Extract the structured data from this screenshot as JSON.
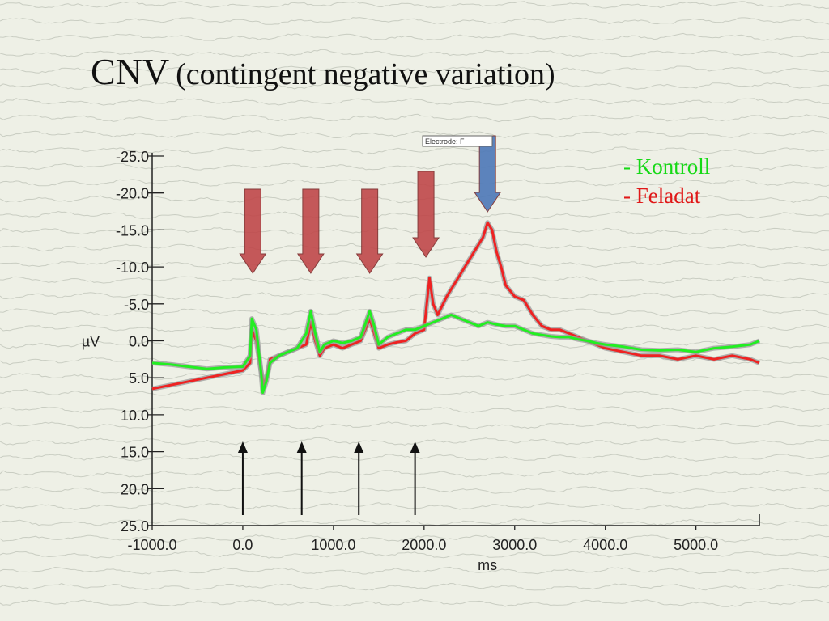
{
  "slide": {
    "title_main": "CNV",
    "title_sub": "(contingent negative variation)"
  },
  "legend": [
    {
      "label": "- Kontroll",
      "color": "#16d916"
    },
    {
      "label": "- Feladat",
      "color": "#e01818"
    }
  ],
  "electrode_label": "Electrode: F",
  "colors": {
    "kontroll": "#22ee22",
    "feladat": "#ee2222",
    "red_arrow": "#c0484a",
    "blue_arrow": "#4d78b8",
    "stimulus_arrow": "#111111"
  },
  "chart_data": {
    "type": "line",
    "xlabel": "ms",
    "ylabel": "µV",
    "xlim": [
      -1000,
      5700
    ],
    "ylim": [
      -25,
      25
    ],
    "y_inverted": true,
    "x_ticks": [
      "-1000.0",
      "0.0",
      "1000.0",
      "2000.0",
      "3000.0",
      "4000.0",
      "5000.0"
    ],
    "x_tick_values": [
      -1000,
      0,
      1000,
      2000,
      3000,
      4000,
      5000
    ],
    "y_ticks": [
      "-25.0",
      "-20.0",
      "-15.0",
      "-10.0",
      "-5.0",
      "0.0",
      "5.0",
      "10.0",
      "15.0",
      "20.0",
      "25.0"
    ],
    "y_tick_values": [
      -25,
      -20,
      -15,
      -10,
      -5,
      0,
      5,
      10,
      15,
      20,
      25
    ],
    "series": [
      {
        "name": "Kontroll",
        "color": "#22ee22",
        "points": [
          [
            -1000,
            3.0
          ],
          [
            -800,
            3.2
          ],
          [
            -600,
            3.5
          ],
          [
            -400,
            3.8
          ],
          [
            -200,
            3.6
          ],
          [
            0,
            3.5
          ],
          [
            80,
            2.0
          ],
          [
            100,
            -3.0
          ],
          [
            150,
            -1.5
          ],
          [
            200,
            4.0
          ],
          [
            220,
            7.0
          ],
          [
            260,
            5.5
          ],
          [
            300,
            3.0
          ],
          [
            400,
            2.0
          ],
          [
            500,
            1.5
          ],
          [
            600,
            1.0
          ],
          [
            700,
            -1.0
          ],
          [
            750,
            -4.0
          ],
          [
            800,
            -1.0
          ],
          [
            850,
            1.5
          ],
          [
            900,
            0.5
          ],
          [
            1000,
            0.0
          ],
          [
            1100,
            0.3
          ],
          [
            1200,
            0.0
          ],
          [
            1300,
            -0.5
          ],
          [
            1400,
            -4.0
          ],
          [
            1450,
            -2.0
          ],
          [
            1500,
            0.5
          ],
          [
            1600,
            -0.5
          ],
          [
            1700,
            -1.0
          ],
          [
            1800,
            -1.5
          ],
          [
            1900,
            -1.5
          ],
          [
            2000,
            -2.0
          ],
          [
            2100,
            -2.5
          ],
          [
            2200,
            -3.0
          ],
          [
            2300,
            -3.5
          ],
          [
            2400,
            -3.0
          ],
          [
            2500,
            -2.5
          ],
          [
            2600,
            -2.0
          ],
          [
            2700,
            -2.5
          ],
          [
            2800,
            -2.2
          ],
          [
            2900,
            -2.0
          ],
          [
            3000,
            -2.0
          ],
          [
            3100,
            -1.5
          ],
          [
            3200,
            -1.0
          ],
          [
            3300,
            -0.8
          ],
          [
            3400,
            -0.6
          ],
          [
            3500,
            -0.5
          ],
          [
            3600,
            -0.5
          ],
          [
            3700,
            -0.2
          ],
          [
            3800,
            0.0
          ],
          [
            3900,
            0.3
          ],
          [
            4000,
            0.5
          ],
          [
            4200,
            0.8
          ],
          [
            4400,
            1.2
          ],
          [
            4600,
            1.3
          ],
          [
            4800,
            1.2
          ],
          [
            5000,
            1.5
          ],
          [
            5200,
            1.0
          ],
          [
            5400,
            0.8
          ],
          [
            5600,
            0.5
          ],
          [
            5700,
            0.0
          ]
        ]
      },
      {
        "name": "Feladat",
        "color": "#ee2222",
        "points": [
          [
            -1000,
            6.5
          ],
          [
            -800,
            6.0
          ],
          [
            -600,
            5.5
          ],
          [
            -400,
            5.0
          ],
          [
            -200,
            4.5
          ],
          [
            0,
            4.0
          ],
          [
            80,
            3.0
          ],
          [
            100,
            -1.5
          ],
          [
            150,
            0.0
          ],
          [
            200,
            4.0
          ],
          [
            230,
            6.0
          ],
          [
            270,
            4.5
          ],
          [
            300,
            2.5
          ],
          [
            400,
            2.0
          ],
          [
            500,
            1.5
          ],
          [
            600,
            1.0
          ],
          [
            700,
            0.5
          ],
          [
            750,
            -2.5
          ],
          [
            800,
            0.0
          ],
          [
            850,
            2.0
          ],
          [
            900,
            1.0
          ],
          [
            1000,
            0.5
          ],
          [
            1100,
            1.0
          ],
          [
            1200,
            0.5
          ],
          [
            1300,
            0.0
          ],
          [
            1400,
            -3.0
          ],
          [
            1450,
            -1.0
          ],
          [
            1500,
            1.0
          ],
          [
            1600,
            0.5
          ],
          [
            1700,
            0.2
          ],
          [
            1800,
            0.0
          ],
          [
            1900,
            -1.0
          ],
          [
            2000,
            -1.5
          ],
          [
            2060,
            -8.5
          ],
          [
            2100,
            -5.0
          ],
          [
            2150,
            -3.5
          ],
          [
            2250,
            -6.0
          ],
          [
            2350,
            -8.0
          ],
          [
            2450,
            -10.0
          ],
          [
            2550,
            -12.0
          ],
          [
            2650,
            -14.0
          ],
          [
            2700,
            -16.0
          ],
          [
            2750,
            -15.0
          ],
          [
            2800,
            -12.0
          ],
          [
            2850,
            -10.0
          ],
          [
            2900,
            -7.5
          ],
          [
            3000,
            -6.0
          ],
          [
            3100,
            -5.5
          ],
          [
            3200,
            -3.5
          ],
          [
            3300,
            -2.0
          ],
          [
            3400,
            -1.5
          ],
          [
            3500,
            -1.5
          ],
          [
            3600,
            -1.0
          ],
          [
            3700,
            -0.5
          ],
          [
            3800,
            0.0
          ],
          [
            3900,
            0.5
          ],
          [
            4000,
            1.0
          ],
          [
            4200,
            1.5
          ],
          [
            4400,
            2.0
          ],
          [
            4600,
            2.0
          ],
          [
            4800,
            2.5
          ],
          [
            5000,
            2.0
          ],
          [
            5200,
            2.5
          ],
          [
            5400,
            2.0
          ],
          [
            5600,
            2.5
          ],
          [
            5700,
            3.0
          ]
        ]
      }
    ],
    "annotations": [
      {
        "type": "stimulus-arrow",
        "x": 0
      },
      {
        "type": "stimulus-arrow",
        "x": 650
      },
      {
        "type": "stimulus-arrow",
        "x": 1280
      },
      {
        "type": "stimulus-arrow",
        "x": 1900
      },
      {
        "type": "response-arrow",
        "color": "red",
        "x": 110
      },
      {
        "type": "response-arrow",
        "color": "red",
        "x": 750
      },
      {
        "type": "response-arrow",
        "color": "red",
        "x": 1400
      },
      {
        "type": "response-arrow",
        "color": "red",
        "x": 2020
      },
      {
        "type": "response-arrow",
        "color": "blue",
        "x": 2700
      }
    ]
  }
}
